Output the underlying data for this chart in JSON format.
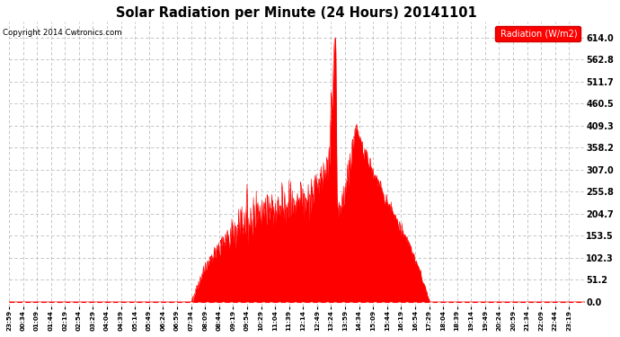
{
  "title": "Solar Radiation per Minute (24 Hours) 20141101",
  "copyright": "Copyright 2014 Cwtronics.com",
  "legend_label": "Radiation (W/m2)",
  "yticks": [
    0.0,
    51.2,
    102.3,
    153.5,
    204.7,
    255.8,
    307.0,
    358.2,
    409.3,
    460.5,
    511.7,
    562.8,
    614.0
  ],
  "ylim": [
    -10.0,
    650.0
  ],
  "fill_color": "#ff0000",
  "line_color": "#ff0000",
  "grid_color": "#bbbbbb",
  "bg_color": "#ffffff",
  "title_color": "#000000",
  "legend_bg": "#ff0000",
  "legend_text_color": "#ffffff",
  "total_minutes": 1440,
  "tick_interval": 35
}
